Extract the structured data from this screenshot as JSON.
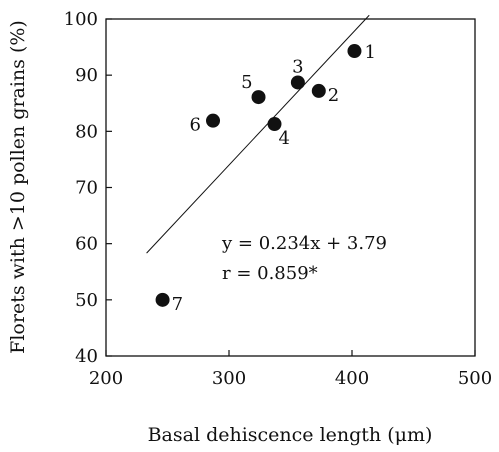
{
  "chart_data": {
    "type": "scatter",
    "xlabel": "Basal dehiscence length (μm)",
    "ylabel": "Florets with >10 pollen grains (%)",
    "xlim": [
      200,
      500
    ],
    "ylim": [
      40,
      100
    ],
    "xticks": [
      "200",
      "300",
      "400",
      "500"
    ],
    "yticks": [
      "40",
      "50",
      "60",
      "70",
      "80",
      "90",
      "100"
    ],
    "grid": false,
    "points": [
      {
        "label": "1",
        "x": 402,
        "y": 94.3
      },
      {
        "label": "2",
        "x": 373,
        "y": 87.2
      },
      {
        "label": "3",
        "x": 356,
        "y": 88.7
      },
      {
        "label": "4",
        "x": 337,
        "y": 81.3
      },
      {
        "label": "5",
        "x": 324,
        "y": 86.1
      },
      {
        "label": "6",
        "x": 287,
        "y": 81.9
      },
      {
        "label": "7",
        "x": 246,
        "y": 50.0
      }
    ],
    "fit": {
      "slope": 0.234,
      "intercept": 3.79,
      "x_range": [
        233,
        414
      ]
    },
    "annotations": [
      "y = 0.234x + 3.79",
      "r = 0.859*"
    ]
  }
}
